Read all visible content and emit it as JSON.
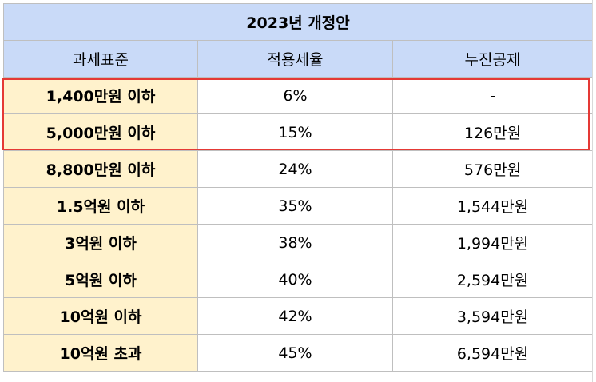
{
  "table": {
    "title": "2023년 개정안",
    "headers": [
      "과세표준",
      "적용세율",
      "누진공제"
    ],
    "rows": [
      {
        "bracket": "1,400만원 이하",
        "rate": "6%",
        "deduction": "-"
      },
      {
        "bracket": "5,000만원 이하",
        "rate": "15%",
        "deduction": "126만원"
      },
      {
        "bracket": "8,800만원 이하",
        "rate": "24%",
        "deduction": "576만원"
      },
      {
        "bracket": "1.5억원 이하",
        "rate": "35%",
        "deduction": "1,544만원"
      },
      {
        "bracket": "3억원 이하",
        "rate": "38%",
        "deduction": "1,994만원"
      },
      {
        "bracket": "5억원 이하",
        "rate": "40%",
        "deduction": "2,594만원"
      },
      {
        "bracket": "10억원 이하",
        "rate": "42%",
        "deduction": "3,594만원"
      },
      {
        "bracket": "10억원 초과",
        "rate": "45%",
        "deduction": "6,594만원"
      }
    ]
  },
  "colors": {
    "header_bg": "#c9daf8",
    "bracket_bg": "#fff2cc",
    "deduction_text": "#e53935",
    "highlight_border": "#e53935",
    "grid": "#bfbfbf"
  }
}
